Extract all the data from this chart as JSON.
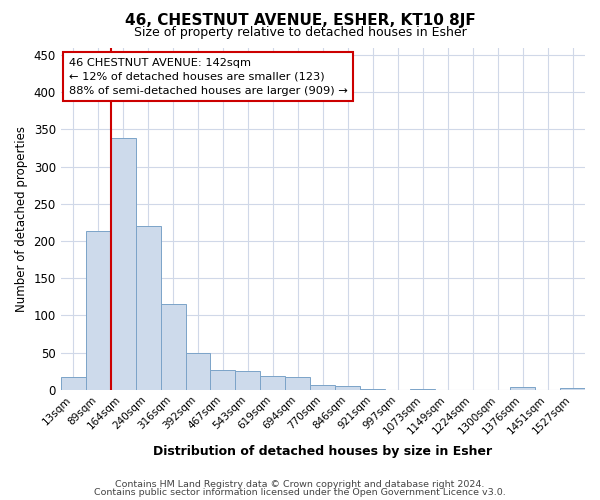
{
  "title": "46, CHESTNUT AVENUE, ESHER, KT10 8JF",
  "subtitle": "Size of property relative to detached houses in Esher",
  "xlabel": "Distribution of detached houses by size in Esher",
  "ylabel": "Number of detached properties",
  "footnote1": "Contains HM Land Registry data © Crown copyright and database right 2024.",
  "footnote2": "Contains public sector information licensed under the Open Government Licence v3.0.",
  "bar_labels": [
    "13sqm",
    "89sqm",
    "164sqm",
    "240sqm",
    "316sqm",
    "392sqm",
    "467sqm",
    "543sqm",
    "619sqm",
    "694sqm",
    "770sqm",
    "846sqm",
    "921sqm",
    "997sqm",
    "1073sqm",
    "1149sqm",
    "1224sqm",
    "1300sqm",
    "1376sqm",
    "1451sqm",
    "1527sqm"
  ],
  "bar_values": [
    17,
    214,
    338,
    220,
    115,
    50,
    26,
    25,
    19,
    17,
    7,
    5,
    1,
    0,
    1,
    0,
    0,
    0,
    4,
    0,
    3
  ],
  "bar_color": "#cddaeb",
  "bar_edge_color": "#7ba3c8",
  "marker_line_color": "#cc0000",
  "annotation_line1": "46 CHESTNUT AVENUE: 142sqm",
  "annotation_line2": "← 12% of detached houses are smaller (123)",
  "annotation_line3": "88% of semi-detached houses are larger (909) →",
  "annotation_box_color": "white",
  "annotation_box_edge": "#cc0000",
  "ylim": [
    0,
    460
  ],
  "yticks": [
    0,
    50,
    100,
    150,
    200,
    250,
    300,
    350,
    400,
    450
  ],
  "background_color": "#ffffff",
  "grid_color": "#d0d8e8",
  "title_fontsize": 11,
  "subtitle_fontsize": 9
}
